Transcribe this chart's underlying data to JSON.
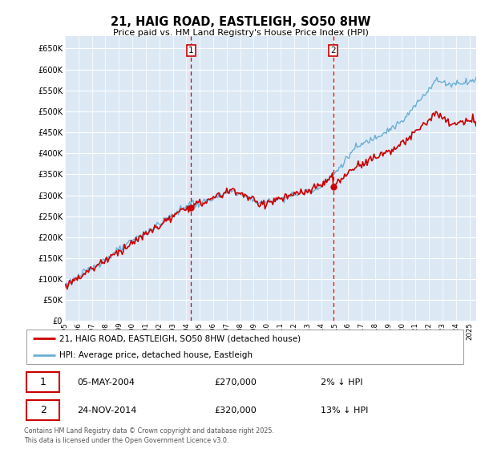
{
  "title_line1": "21, HAIG ROAD, EASTLEIGH, SO50 8HW",
  "title_line2": "Price paid vs. HM Land Registry's House Price Index (HPI)",
  "legend_line1": "21, HAIG ROAD, EASTLEIGH, SO50 8HW (detached house)",
  "legend_line2": "HPI: Average price, detached house, Eastleigh",
  "annotation1_date": "05-MAY-2004",
  "annotation1_price": "£270,000",
  "annotation1_hpi": "2% ↓ HPI",
  "annotation2_date": "24-NOV-2014",
  "annotation2_price": "£320,000",
  "annotation2_hpi": "13% ↓ HPI",
  "footnote": "Contains HM Land Registry data © Crown copyright and database right 2025.\nThis data is licensed under the Open Government Licence v3.0.",
  "ylim": [
    0,
    680000
  ],
  "yticks": [
    0,
    50000,
    100000,
    150000,
    200000,
    250000,
    300000,
    350000,
    400000,
    450000,
    500000,
    550000,
    600000,
    650000
  ],
  "hpi_fill_color": "#dce9f5",
  "hpi_line_color": "#6baed6",
  "price_color": "#cc0000",
  "vline_color": "#cc0000",
  "plot_bg": "#dce9f5",
  "grid_color": "#ffffff",
  "marker1_x": 2004.35,
  "marker1_y": 270000,
  "marker2_x": 2014.9,
  "marker2_y": 320000,
  "xmin": 1995,
  "xmax": 2025.5
}
